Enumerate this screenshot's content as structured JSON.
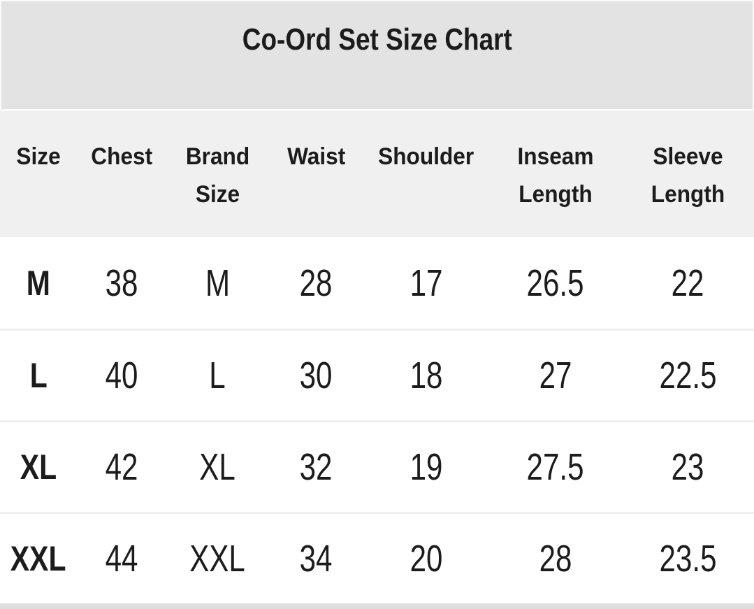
{
  "chart_data": {
    "type": "table",
    "title": "Co-Ord Set Size Chart",
    "columns": [
      "Size",
      "Chest",
      "Brand Size",
      "Waist",
      "Shoulder",
      "Inseam Length",
      "Sleeve Length"
    ],
    "rows": [
      [
        "M",
        "38",
        "M",
        "28",
        "17",
        "26.5",
        "22"
      ],
      [
        "L",
        "40",
        "L",
        "30",
        "18",
        "27",
        "22.5"
      ],
      [
        "XL",
        "42",
        "XL",
        "32",
        "19",
        "27.5",
        "23"
      ],
      [
        "XXL",
        "44",
        "XXL",
        "34",
        "20",
        "28",
        "23.5"
      ]
    ],
    "layout": {
      "legend": "none",
      "grid": "horizontal-dividers-only",
      "header_position": "top"
    }
  },
  "colors": {
    "title_band": "#e3e3e3",
    "header_band": "#f0f0f0",
    "row_background": "#ffffff",
    "divider": "#efefef",
    "bottom_strip": "#dedede",
    "text": "#1c1c1c"
  }
}
